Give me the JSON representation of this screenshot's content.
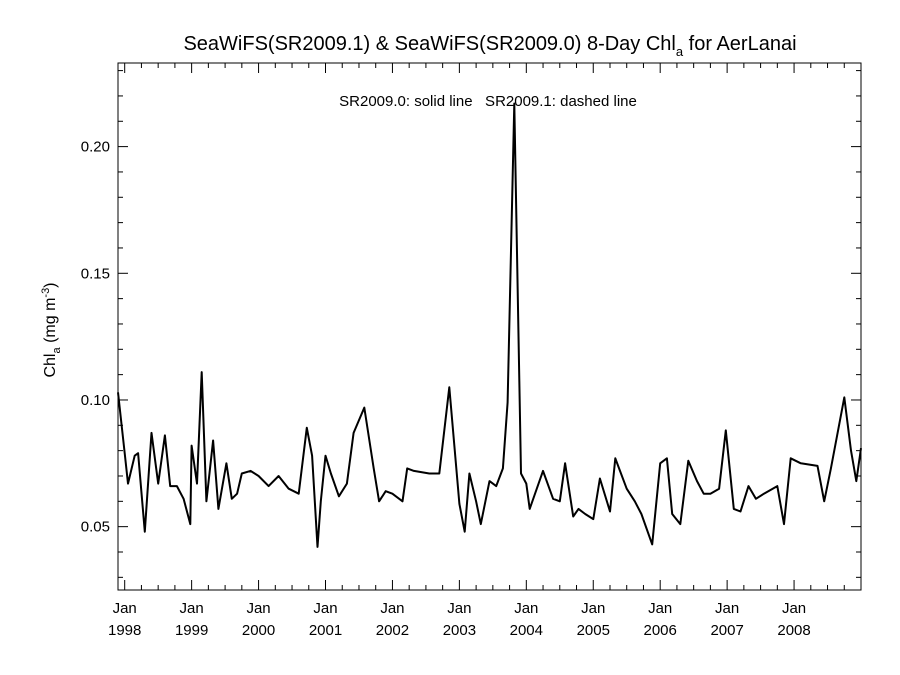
{
  "chart_data": {
    "type": "line",
    "title": {
      "main": "SeaWiFS(SR2009.1) & SeaWiFS(SR2009.0) 8-Day Chl",
      "sub": "a",
      "suffix": " for AerLanai"
    },
    "ylabel": {
      "base": "Chl",
      "sub": "a",
      "unit_prefix": " (mg m",
      "sup": "-3",
      "unit_suffix": ")"
    },
    "annotation": "SR2009.0: solid line   SR2009.1: dashed line",
    "xlim": [
      1997.9,
      2009.0
    ],
    "ylim": [
      0.025,
      0.233
    ],
    "yticks": [
      {
        "value": 0.05,
        "label": "0.05"
      },
      {
        "value": 0.1,
        "label": "0.10"
      },
      {
        "value": 0.15,
        "label": "0.15"
      },
      {
        "value": 0.2,
        "label": "0.20"
      }
    ],
    "xticks": [
      {
        "value": 1998.0,
        "month": "Jan",
        "year": "1998"
      },
      {
        "value": 1999.0,
        "month": "Jan",
        "year": "1999"
      },
      {
        "value": 2000.0,
        "month": "Jan",
        "year": "2000"
      },
      {
        "value": 2001.0,
        "month": "Jan",
        "year": "2001"
      },
      {
        "value": 2002.0,
        "month": "Jan",
        "year": "2002"
      },
      {
        "value": 2003.0,
        "month": "Jan",
        "year": "2003"
      },
      {
        "value": 2004.0,
        "month": "Jan",
        "year": "2004"
      },
      {
        "value": 2005.0,
        "month": "Jan",
        "year": "2005"
      },
      {
        "value": 2006.0,
        "month": "Jan",
        "year": "2006"
      },
      {
        "value": 2007.0,
        "month": "Jan",
        "year": "2007"
      },
      {
        "value": 2008.0,
        "month": "Jan",
        "year": "2008"
      }
    ],
    "series": [
      {
        "style": "solid",
        "x": [
          1997.9,
          1998.0,
          1998.05,
          1998.15,
          1998.2,
          1998.3,
          1998.4,
          1998.5,
          1998.6,
          1998.68,
          1998.78,
          1998.88,
          1998.98,
          1999.0,
          1999.08,
          1999.15,
          1999.22,
          1999.32,
          1999.4,
          1999.52,
          1999.6,
          1999.68,
          1999.75,
          1999.88,
          2000.0,
          2000.15,
          2000.3,
          2000.45,
          2000.6,
          2000.72,
          2000.8,
          2000.88,
          2000.93,
          2001.0,
          2001.08,
          2001.2,
          2001.32,
          2001.42,
          2001.58,
          2001.72,
          2001.8,
          2001.9,
          2002.0,
          2002.15,
          2002.22,
          2002.32,
          2002.55,
          2002.7,
          2002.85,
          2003.0,
          2003.08,
          2003.15,
          2003.25,
          2003.32,
          2003.45,
          2003.55,
          2003.65,
          2003.72,
          2003.82,
          2003.92,
          2004.0,
          2004.05,
          2004.25,
          2004.4,
          2004.5,
          2004.58,
          2004.7,
          2004.78,
          2004.88,
          2005.0,
          2005.1,
          2005.25,
          2005.33,
          2005.4,
          2005.5,
          2005.62,
          2005.72,
          2005.88,
          2006.0,
          2006.1,
          2006.18,
          2006.3,
          2006.42,
          2006.55,
          2006.65,
          2006.75,
          2006.88,
          2006.98,
          2007.1,
          2007.2,
          2007.32,
          2007.43,
          2007.55,
          2007.75,
          2007.85,
          2007.95,
          2008.1,
          2008.35,
          2008.45,
          2008.55,
          2008.75,
          2008.85,
          2008.93,
          2009.0
        ],
        "y": [
          0.103,
          0.079,
          0.067,
          0.078,
          0.079,
          0.048,
          0.087,
          0.067,
          0.086,
          0.066,
          0.066,
          0.061,
          0.051,
          0.082,
          0.067,
          0.111,
          0.06,
          0.084,
          0.057,
          0.075,
          0.061,
          0.063,
          0.071,
          0.072,
          0.07,
          0.066,
          0.07,
          0.065,
          0.063,
          0.089,
          0.078,
          0.042,
          0.06,
          0.078,
          0.071,
          0.062,
          0.067,
          0.087,
          0.097,
          0.073,
          0.06,
          0.064,
          0.063,
          0.06,
          0.073,
          0.072,
          0.071,
          0.071,
          0.105,
          0.059,
          0.048,
          0.071,
          0.06,
          0.051,
          0.068,
          0.066,
          0.073,
          0.099,
          0.217,
          0.071,
          0.067,
          0.057,
          0.072,
          0.061,
          0.06,
          0.075,
          0.054,
          0.057,
          0.055,
          0.053,
          0.069,
          0.056,
          0.077,
          0.072,
          0.065,
          0.06,
          0.055,
          0.043,
          0.075,
          0.077,
          0.055,
          0.051,
          0.076,
          0.068,
          0.063,
          0.063,
          0.065,
          0.088,
          0.057,
          0.056,
          0.066,
          0.061,
          0.063,
          0.066,
          0.051,
          0.077,
          0.075,
          0.074,
          0.06,
          0.073,
          0.101,
          0.08,
          0.068,
          0.081
        ]
      }
    ]
  }
}
